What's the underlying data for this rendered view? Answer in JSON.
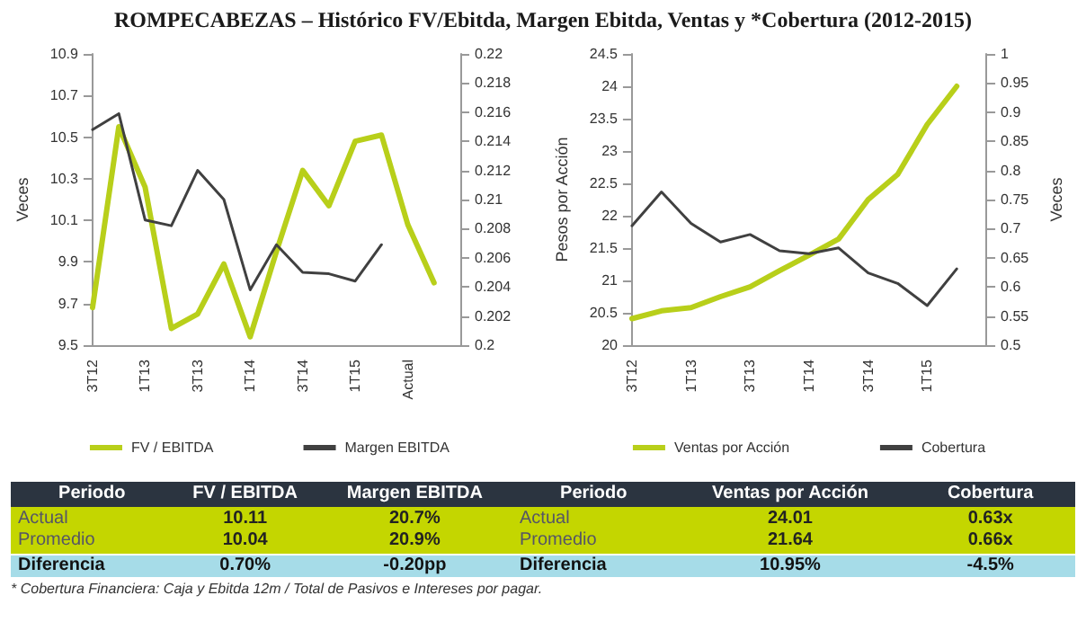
{
  "chart_data": [
    {
      "type": "line",
      "title": "ROMPECABEZAS – Histórico FV/Ebitda, Margen Ebitda, Ventas y *Cobertura (2012-2015)",
      "ylabel": "Veces",
      "categories": [
        "3T12",
        null,
        "1T13",
        null,
        "3T13",
        null,
        "1T14",
        null,
        "3T14",
        null,
        "1T15",
        null,
        "Actual",
        null,
        null
      ],
      "series": [
        {
          "name": "FV / EBITDA",
          "color": "#b8cf1a",
          "values": [
            9.68,
            10.55,
            10.26,
            9.58,
            9.65,
            9.89,
            9.54,
            9.95,
            10.34,
            10.17,
            10.48,
            10.51,
            10.08,
            9.8,
            null
          ]
        },
        {
          "name": "Margen EBITDA",
          "color": "#404040",
          "axis": "y2",
          "values": [
            0.2148,
            0.2159,
            0.2086,
            0.2082,
            0.212,
            0.21,
            0.2038,
            0.2069,
            0.205,
            0.2049,
            0.2044,
            0.2069,
            null,
            null,
            null
          ]
        }
      ],
      "ylim": [
        9.5,
        10.9
      ],
      "yticks": [
        9.5,
        9.7,
        9.9,
        10.1,
        10.3,
        10.5,
        10.7,
        10.9
      ],
      "y2lim": [
        0.2,
        0.22
      ],
      "y2ticks": [
        0.2,
        0.202,
        0.204,
        0.206,
        0.208,
        0.21,
        0.212,
        0.214,
        0.216,
        0.218,
        0.22
      ],
      "grid": false,
      "legend": "bottom",
      "marker": "none",
      "line_style": "solid"
    },
    {
      "type": "line",
      "ylabel": "Pesos por Acción",
      "y2label": "Veces",
      "categories": [
        "3T12",
        null,
        "1T13",
        null,
        "3T13",
        null,
        "1T14",
        null,
        "3T14",
        null,
        "1T15",
        null,
        null
      ],
      "series": [
        {
          "name": "Ventas por Acción",
          "color": "#b8cf1a",
          "values": [
            20.41,
            20.53,
            20.58,
            20.75,
            20.9,
            21.15,
            21.39,
            21.64,
            22.25,
            22.64,
            23.41,
            24.0,
            null
          ]
        },
        {
          "name": "Cobertura",
          "color": "#404040",
          "axis": "y2",
          "values": [
            0.705,
            0.763,
            0.709,
            0.677,
            0.69,
            0.662,
            0.657,
            0.667,
            0.624,
            0.606,
            0.568,
            0.631,
            null
          ]
        }
      ],
      "ylim": [
        20,
        24.5
      ],
      "yticks": [
        20,
        20.5,
        21,
        21.5,
        22,
        22.5,
        23,
        23.5,
        24,
        24.5
      ],
      "y2lim": [
        0.5,
        1
      ],
      "y2ticks": [
        0.5,
        0.55,
        0.6,
        0.65,
        0.7,
        0.75,
        0.8,
        0.85,
        0.9,
        0.95,
        1
      ],
      "grid": false,
      "legend": "bottom",
      "marker": "none",
      "line_style": "solid"
    },
    {
      "type": "other",
      "annotations": [
        "Periodo",
        "FV / EBITDA",
        "Margen EBITDA",
        "Periodo",
        "Ventas por Acción",
        "Cobertura",
        "Actual",
        "10.11",
        "20.7%",
        "Actual",
        "24.01",
        "0.63x",
        "Promedio",
        "10.04",
        "20.9%",
        "Promedio",
        "21.64",
        "0.66x",
        "Diferencia",
        "0.70%",
        "-0.20pp",
        "Diferencia",
        "10.95%",
        "-4.5%",
        "* Cobertura Financiera: Caja y Ebitda 12m / Total de Pasivos e Intereses por pagar."
      ]
    }
  ]
}
